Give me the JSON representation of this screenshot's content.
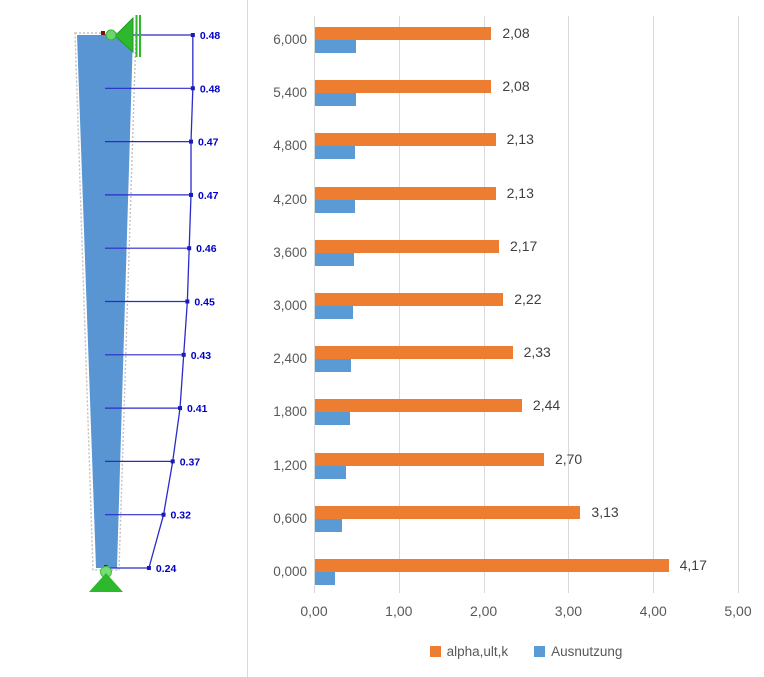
{
  "diagram": {
    "description": "member-utilization-diagram",
    "values": [
      "0.48",
      "0.48",
      "0.47",
      "0.47",
      "0.46",
      "0.45",
      "0.43",
      "0.41",
      "0.37",
      "0.32",
      "0.24"
    ],
    "member_color": "#5A95D3",
    "result_line_color": "#2B2BC8",
    "label_color": "#0000C8",
    "support_color": "#2EB82E",
    "node_color": "#7A1010",
    "outline_color": "#C0C0C0"
  },
  "chart_data": {
    "type": "bar",
    "orientation": "horizontal",
    "categories": [
      "6,000",
      "5,400",
      "4,800",
      "4,200",
      "3,600",
      "3,000",
      "2,400",
      "1,800",
      "1,200",
      "0,600",
      "0,000"
    ],
    "series": [
      {
        "name": "alpha,ult,k",
        "color": "#ED7D31",
        "values": [
          2.08,
          2.08,
          2.13,
          2.13,
          2.17,
          2.22,
          2.33,
          2.44,
          2.7,
          3.13,
          4.17
        ],
        "labels": [
          "2,08",
          "2,08",
          "2,13",
          "2,13",
          "2,17",
          "2,22",
          "2,33",
          "2,44",
          "2,70",
          "3,13",
          "4,17"
        ]
      },
      {
        "name": "Ausnutzung",
        "color": "#5B9BD5",
        "values": [
          0.48,
          0.48,
          0.47,
          0.47,
          0.46,
          0.45,
          0.43,
          0.41,
          0.37,
          0.32,
          0.24
        ]
      }
    ],
    "x_ticks": [
      "0,00",
      "1,00",
      "2,00",
      "3,00",
      "4,00",
      "5,00"
    ],
    "xlim": [
      0,
      5
    ],
    "grid": "vertical-only",
    "gridline_color": "#D9D9D9",
    "axis_label_color": "#595959",
    "data_label_color": "#3F3F3F",
    "legend_position": "bottom",
    "legend": [
      "alpha,ult,k",
      "Ausnutzung"
    ]
  }
}
